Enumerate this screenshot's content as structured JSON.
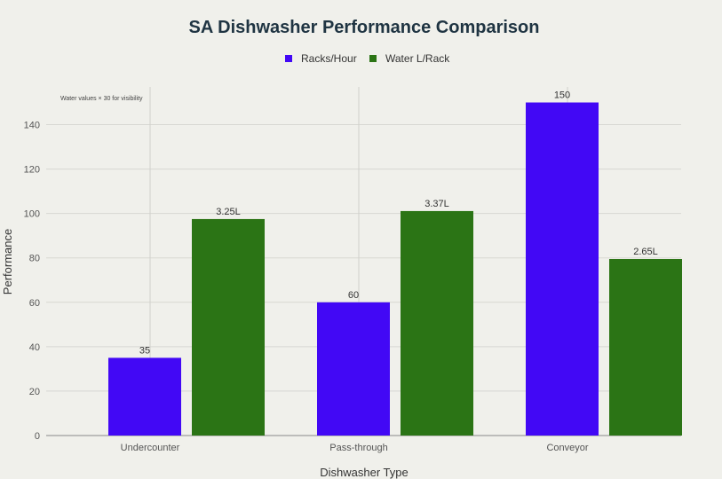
{
  "chart_data": {
    "type": "bar",
    "title": "SA Dishwasher Performance Comparison",
    "xlabel": "Dishwasher Type",
    "ylabel": "Performance",
    "annotation": "Water values × 30 for visibility",
    "categories": [
      "Undercounter",
      "Pass-through",
      "Conveyor"
    ],
    "ylim": [
      0,
      150
    ],
    "yticks": [
      0,
      20,
      40,
      60,
      80,
      100,
      120,
      140
    ],
    "grid": true,
    "legend_position": "top-center",
    "series": [
      {
        "name": "Racks/Hour",
        "color": "#4208f5",
        "values": [
          35,
          60,
          150
        ],
        "labels": [
          "35",
          "60",
          "150"
        ]
      },
      {
        "name": "Water L/Rack",
        "color": "#2b7415",
        "values": [
          97.5,
          101.1,
          79.5
        ],
        "labels": [
          "3.25L",
          "3.37L",
          "2.65L"
        ]
      }
    ]
  }
}
